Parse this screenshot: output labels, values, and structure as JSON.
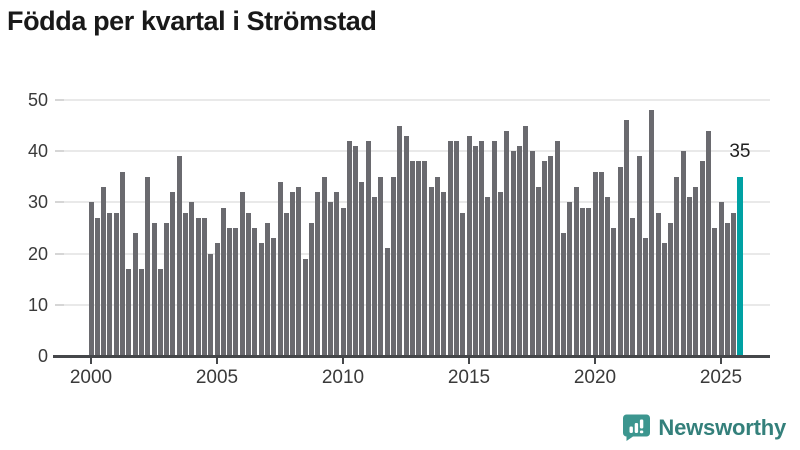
{
  "title": "Födda per kvartal i Strömstad",
  "chart_data": {
    "type": "bar",
    "title": "Födda per kvartal i Strömstad",
    "frequency": "quarterly",
    "start": "2000 Q1",
    "end": "2025 Q4",
    "values": [
      30,
      27,
      33,
      28,
      28,
      36,
      17,
      24,
      17,
      35,
      26,
      17,
      26,
      32,
      39,
      28,
      30,
      27,
      27,
      20,
      22,
      29,
      25,
      25,
      32,
      28,
      25,
      22,
      26,
      23,
      34,
      28,
      32,
      33,
      19,
      26,
      32,
      35,
      30,
      32,
      29,
      42,
      41,
      34,
      42,
      31,
      35,
      21,
      35,
      45,
      43,
      38,
      38,
      38,
      33,
      35,
      32,
      42,
      42,
      28,
      43,
      41,
      42,
      31,
      42,
      32,
      44,
      40,
      41,
      45,
      40,
      33,
      38,
      39,
      42,
      24,
      30,
      33,
      29,
      29,
      36,
      36,
      31,
      25,
      37,
      46,
      27,
      39,
      23,
      48,
      28,
      22,
      26,
      35,
      40,
      31,
      33,
      38,
      44,
      25,
      30,
      26,
      28,
      35
    ],
    "highlight": {
      "index": 103,
      "label": "35",
      "color": "#00a1a3"
    },
    "x_tick_labels": [
      "2000",
      "2005",
      "2010",
      "2015",
      "2020",
      "2025"
    ],
    "x_tick_year_offsets": [
      0,
      5,
      10,
      15,
      20,
      25
    ],
    "y_ticks": [
      0,
      10,
      20,
      30,
      40,
      50
    ],
    "ylim": [
      0,
      50
    ],
    "bar_color": "#6a6a6f",
    "grid": true,
    "legend": "none"
  },
  "footer": {
    "brand": "Newsworthy",
    "logo_icon": "bar-chart-speech-bubble-icon",
    "brand_color": "#34807b",
    "icon_color": "#3c968f"
  }
}
